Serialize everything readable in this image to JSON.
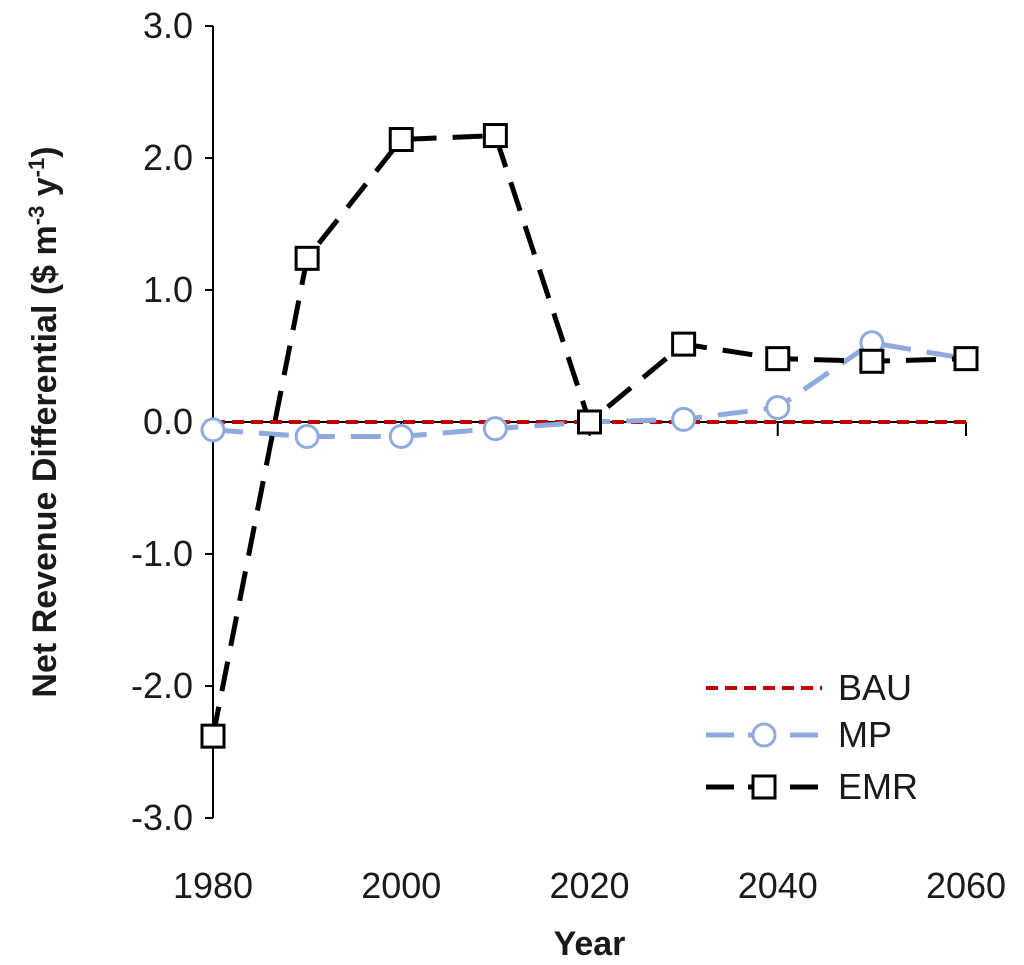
{
  "chart_data": {
    "type": "line",
    "title": "",
    "xlabel": "Year",
    "ylabel": {
      "prefix": "Net Revenue Differential ($ m",
      "sup1": "-3",
      "mid": " y",
      "sup2": "-1",
      "suffix": ")"
    },
    "xlim": [
      1980,
      2060
    ],
    "ylim": [
      -3.0,
      3.0
    ],
    "x_ticks": [
      1980,
      2000,
      2020,
      2040,
      2060
    ],
    "x_tick_labels": [
      "1980",
      "2000",
      "2020",
      "2040",
      "2060"
    ],
    "y_ticks": [
      -3.0,
      -2.0,
      -1.0,
      0.0,
      1.0,
      2.0,
      3.0
    ],
    "y_tick_labels": [
      "-3.0",
      "-2.0",
      "-1.0",
      "0.0",
      "1.0",
      "2.0",
      "3.0"
    ],
    "x": [
      1980,
      1990,
      2000,
      2010,
      2020,
      2030,
      2040,
      2050,
      2060
    ],
    "series": [
      {
        "name": "BAU",
        "values": [
          0,
          0,
          0,
          0,
          0,
          0,
          0,
          0,
          0
        ],
        "color": "#c00000",
        "style": "short-dash",
        "marker": "none"
      },
      {
        "name": "MP",
        "values": [
          -0.06,
          -0.11,
          -0.11,
          -0.05,
          0.0,
          0.02,
          0.11,
          0.6,
          0.48
        ],
        "color": "#8faadc",
        "style": "long-dash",
        "marker": "circle"
      },
      {
        "name": "EMR",
        "values": [
          -2.38,
          1.24,
          2.14,
          2.17,
          0.0,
          0.59,
          0.48,
          0.46,
          0.48
        ],
        "color": "#000000",
        "style": "long-dash",
        "marker": "square"
      }
    ],
    "legend": {
      "position": "bottom-right",
      "labels": [
        "BAU",
        "MP",
        "EMR"
      ]
    },
    "grid": false
  }
}
